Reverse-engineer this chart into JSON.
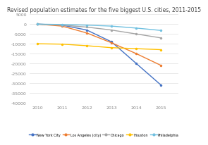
{
  "title": "Revised population estimates for the five biggest U.S. cities, 2011-2015",
  "years": [
    2010,
    2011,
    2012,
    2013,
    2014,
    2015
  ],
  "series": {
    "New York City": {
      "values": [
        0,
        -500,
        -3000,
        -9000,
        -20000,
        -31000
      ],
      "color": "#4472c4",
      "linewidth": 1.0,
      "marker": "o",
      "markersize": 1.5
    },
    "Los Angeles (city)": {
      "values": [
        0,
        -1000,
        -4500,
        -9500,
        -15000,
        -21000
      ],
      "color": "#ed7d31",
      "linewidth": 1.0,
      "marker": "o",
      "markersize": 1.5
    },
    "Chicago": {
      "values": [
        0,
        -500,
        -1500,
        -3000,
        -5000,
        -7000
      ],
      "color": "#a5a5a5",
      "linewidth": 1.0,
      "marker": "o",
      "markersize": 1.5
    },
    "Houston": {
      "values": [
        -10000,
        -10200,
        -11000,
        -12000,
        -12500,
        -13000
      ],
      "color": "#ffc000",
      "linewidth": 1.0,
      "marker": "o",
      "markersize": 1.5
    },
    "Philadelphia": {
      "values": [
        0,
        -200,
        -500,
        -1000,
        -2000,
        -3200
      ],
      "color": "#70c0e0",
      "linewidth": 1.0,
      "marker": "o",
      "markersize": 1.5
    }
  },
  "ylim": [
    -40000,
    5000
  ],
  "yticks": [
    5000,
    0,
    -5000,
    -10000,
    -15000,
    -20000,
    -25000,
    -30000,
    -35000,
    -40000
  ],
  "xlim": [
    2009.7,
    2015.7
  ],
  "background_color": "#ffffff",
  "grid_color": "#e0e0e0",
  "title_fontsize": 5.5,
  "tick_fontsize": 4.5,
  "legend_fontsize": 3.5
}
